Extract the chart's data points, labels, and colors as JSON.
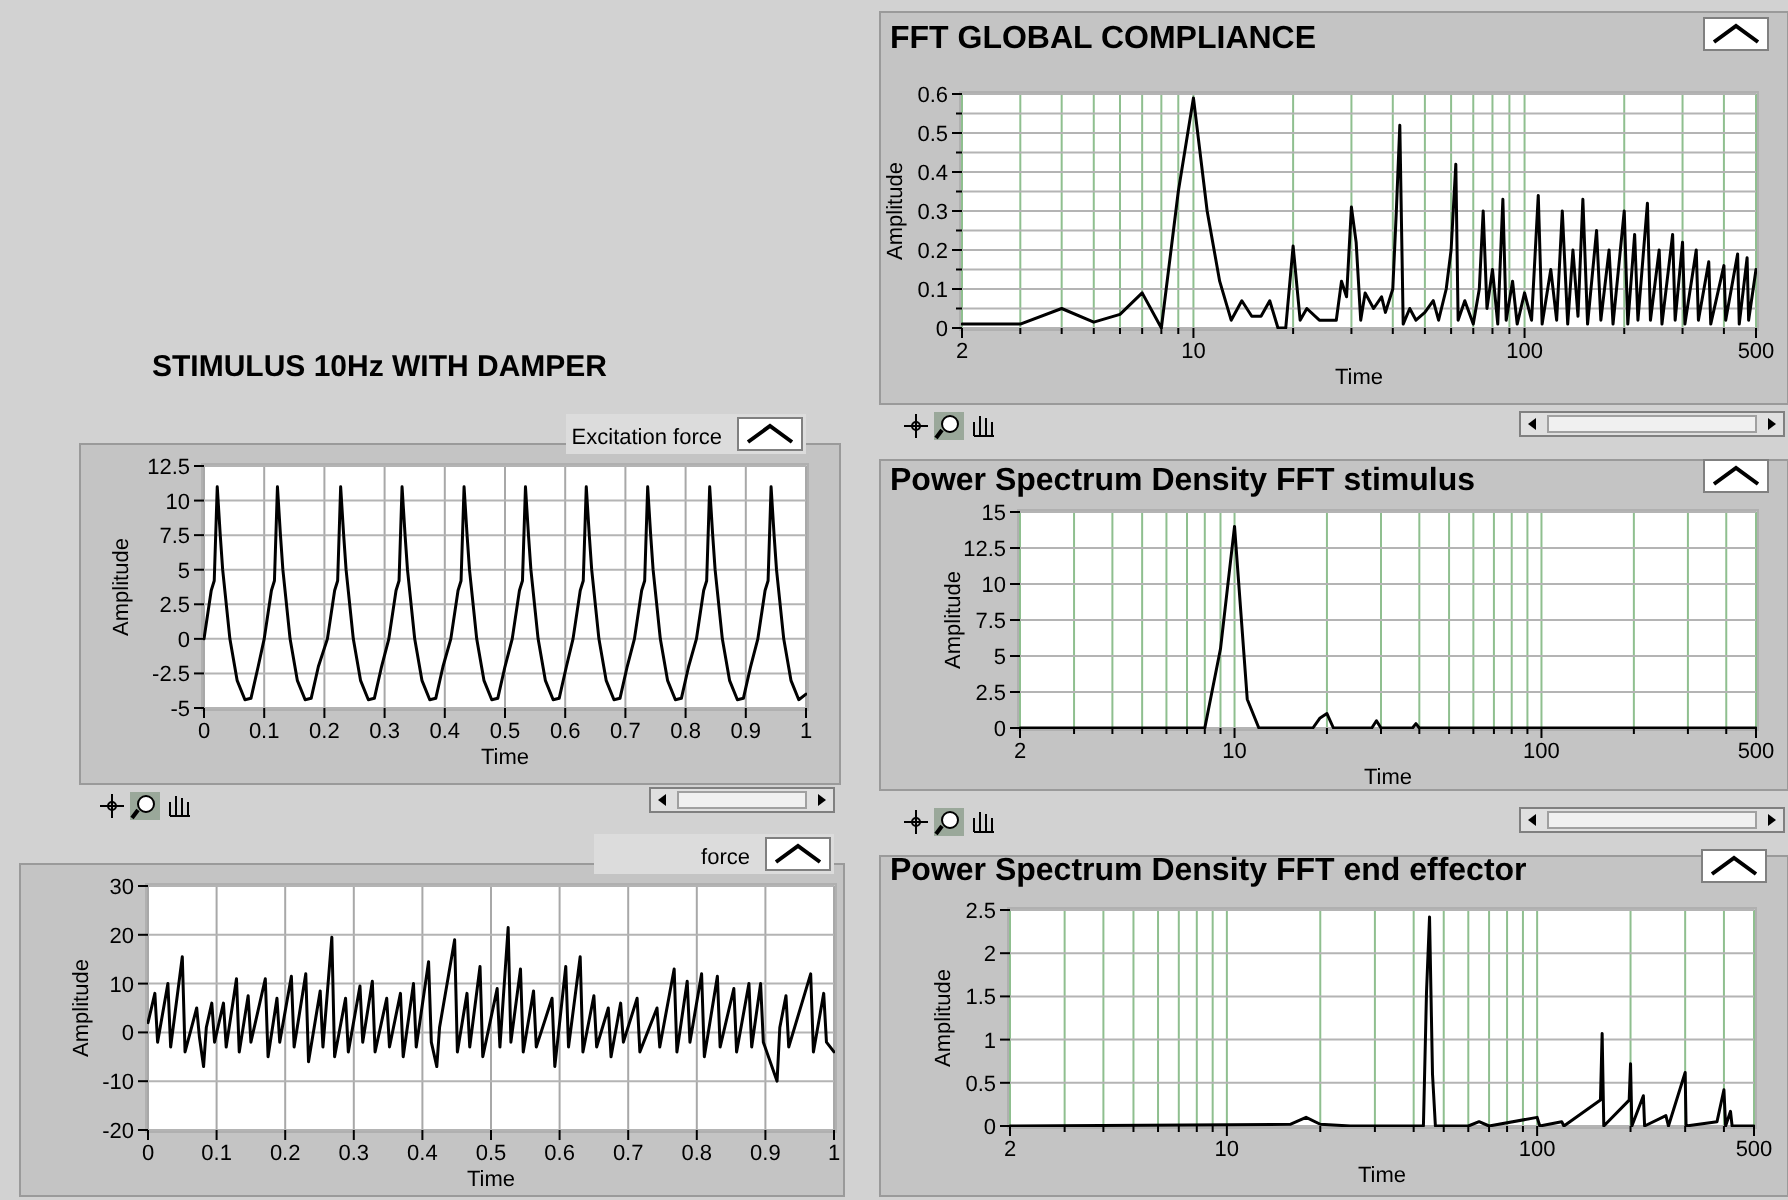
{
  "chart_data": [
    {
      "type": "line",
      "title": "FFT GLOBAL COMPLIANCE",
      "xlabel": "Time",
      "ylabel": "Amplitude",
      "log": "x",
      "grid": true,
      "xlim": [
        2,
        500
      ],
      "ylim": [
        0,
        0.6
      ],
      "xticks": [
        2,
        {
          "value": 3,
          "label": null
        },
        {
          "value": 4,
          "label": null
        },
        {
          "value": 5,
          "label": null
        },
        {
          "value": 6,
          "label": null
        },
        {
          "value": 7,
          "label": null
        },
        {
          "value": 8,
          "label": null
        },
        {
          "value": 9,
          "label": null
        },
        10,
        {
          "value": 20,
          "label": null
        },
        {
          "value": 30,
          "label": null
        },
        {
          "value": 40,
          "label": null
        },
        {
          "value": 50,
          "label": null
        },
        {
          "value": 60,
          "label": null
        },
        {
          "value": 70,
          "label": null
        },
        {
          "value": 80,
          "label": null
        },
        {
          "value": 90,
          "label": null
        },
        100,
        {
          "value": 200,
          "label": null
        },
        {
          "value": 300,
          "label": null
        },
        {
          "value": 400,
          "label": null
        },
        500
      ],
      "yticks": [
        0,
        {
          "value": 0.05,
          "label": null
        },
        0.1,
        {
          "value": 0.15,
          "label": null
        },
        0.2,
        {
          "value": 0.25,
          "label": null
        },
        0.3,
        {
          "value": 0.35,
          "label": null
        },
        0.4,
        {
          "value": 0.45,
          "label": null
        },
        0.5,
        {
          "value": 0.55,
          "label": null
        },
        0.6
      ],
      "series": [
        {
          "color": "#000000",
          "x": [
            2,
            3,
            4,
            5,
            6,
            7,
            8,
            9,
            10,
            11,
            12,
            13,
            14,
            15,
            16,
            17,
            18,
            19,
            20,
            21,
            22,
            24,
            27,
            28,
            29,
            30,
            31,
            32,
            33,
            35,
            37,
            38,
            40,
            41,
            42,
            43,
            45,
            47,
            50,
            53,
            55,
            58,
            60,
            62,
            63,
            66,
            70,
            73,
            75,
            77,
            80,
            83,
            86,
            88,
            92,
            95,
            100,
            105,
            110,
            113,
            120,
            125,
            130,
            135,
            140,
            145,
            150,
            155,
            165,
            170,
            180,
            185,
            200,
            205,
            215,
            220,
            235,
            240,
            255,
            260,
            280,
            285,
            300,
            305,
            330,
            335,
            360,
            365,
            400,
            405,
            440,
            445,
            470,
            475,
            500
          ],
          "values": [
            0.01,
            0.01,
            0.05,
            0.015,
            0.035,
            0.09,
            0,
            0.35,
            0.59,
            0.3,
            0.12,
            0.02,
            0.07,
            0.03,
            0.03,
            0.07,
            0,
            0,
            0.21,
            0.02,
            0.05,
            0.02,
            0.02,
            0.12,
            0.08,
            0.31,
            0.22,
            0.02,
            0.09,
            0.05,
            0.08,
            0.04,
            0.1,
            0.3,
            0.52,
            0.01,
            0.05,
            0.02,
            0.04,
            0.07,
            0.02,
            0.1,
            0.2,
            0.42,
            0.02,
            0.07,
            0.01,
            0.1,
            0.3,
            0.05,
            0.15,
            0.01,
            0.33,
            0.02,
            0.12,
            0.01,
            0.09,
            0.02,
            0.34,
            0.01,
            0.15,
            0.02,
            0.3,
            0.01,
            0.2,
            0.03,
            0.33,
            0.01,
            0.25,
            0.02,
            0.2,
            0.01,
            0.3,
            0.01,
            0.24,
            0.02,
            0.32,
            0.02,
            0.2,
            0.01,
            0.24,
            0.02,
            0.22,
            0.01,
            0.2,
            0.02,
            0.17,
            0.01,
            0.16,
            0.02,
            0.19,
            0.01,
            0.18,
            0.02,
            0.15
          ]
        }
      ]
    },
    {
      "type": "line",
      "title": "STIMULUS 10Hz WITH DAMPER",
      "xlabel": "Time",
      "ylabel": "Amplitude",
      "grid": true,
      "legend": "top right",
      "xlim": [
        0,
        1
      ],
      "ylim": [
        -5,
        12.5
      ],
      "xticks": [
        0,
        0.1,
        0.2,
        0.3,
        0.4,
        0.5,
        0.6,
        0.7,
        0.8,
        0.9,
        1
      ],
      "yticks": [
        -5,
        -2.5,
        0,
        2.5,
        5,
        7.5,
        10,
        12.5
      ],
      "series": [
        {
          "name": "Excitation force",
          "color": "#000000",
          "x": [
            0,
            0.012,
            0.017,
            0.022,
            0.027,
            0.031,
            0.043,
            0.055,
            0.068,
            0.078,
            0.09,
            0.1,
            0.112,
            0.117,
            0.122,
            0.127,
            0.131,
            0.143,
            0.155,
            0.168,
            0.178,
            0.19,
            0.205,
            0.217,
            0.222,
            0.227,
            0.232,
            0.236,
            0.248,
            0.26,
            0.273,
            0.283,
            0.295,
            0.307,
            0.319,
            0.324,
            0.329,
            0.334,
            0.338,
            0.35,
            0.362,
            0.375,
            0.385,
            0.397,
            0.41,
            0.422,
            0.427,
            0.432,
            0.437,
            0.441,
            0.453,
            0.465,
            0.478,
            0.488,
            0.5,
            0.512,
            0.524,
            0.529,
            0.534,
            0.539,
            0.543,
            0.555,
            0.567,
            0.58,
            0.59,
            0.602,
            0.613,
            0.625,
            0.63,
            0.635,
            0.64,
            0.644,
            0.656,
            0.668,
            0.681,
            0.691,
            0.703,
            0.715,
            0.727,
            0.732,
            0.737,
            0.742,
            0.746,
            0.758,
            0.77,
            0.783,
            0.793,
            0.805,
            0.818,
            0.83,
            0.835,
            0.84,
            0.845,
            0.849,
            0.861,
            0.873,
            0.886,
            0.896,
            0.908,
            0.92,
            0.932,
            0.937,
            0.942,
            0.947,
            0.951,
            0.963,
            0.975,
            0.988,
            1
          ],
          "values": [
            0,
            3.5,
            4.2,
            11,
            7.5,
            5,
            0,
            -3,
            -4.4,
            -4.3,
            -2,
            0,
            3.5,
            4.2,
            11,
            7.5,
            5,
            0,
            -3,
            -4.4,
            -4.3,
            -2,
            0,
            3.5,
            4.2,
            11,
            7.5,
            5,
            0,
            -3,
            -4.4,
            -4.3,
            -2,
            0,
            3.5,
            4.2,
            11,
            7.5,
            5,
            0,
            -3,
            -4.4,
            -4.3,
            -2,
            0,
            3.5,
            4.2,
            11,
            7.5,
            5,
            0,
            -3,
            -4.4,
            -4.3,
            -2,
            0,
            3.5,
            4.2,
            11,
            7.5,
            5,
            0,
            -3,
            -4.4,
            -4.3,
            -2,
            0,
            3.5,
            4.2,
            11,
            7.5,
            5,
            0,
            -3,
            -4.4,
            -4.3,
            -2,
            0,
            3.5,
            4.2,
            11,
            7.5,
            5,
            0,
            -3,
            -4.4,
            -4.3,
            -2,
            0,
            3.5,
            4.2,
            11,
            7.5,
            5,
            0,
            -3,
            -4.4,
            -4.3,
            -2,
            0,
            3.5,
            4.2,
            11,
            7.5,
            5,
            0,
            -3,
            -4.4,
            -4
          ]
        }
      ]
    },
    {
      "type": "line",
      "title": "Power Spectrum Density FFT stimulus",
      "xlabel": "Time",
      "ylabel": "Amplitude",
      "log": "x",
      "grid": true,
      "xlim": [
        2,
        500
      ],
      "ylim": [
        0,
        15
      ],
      "xticks": [
        2,
        {
          "value": 3,
          "label": null
        },
        {
          "value": 4,
          "label": null
        },
        {
          "value": 5,
          "label": null
        },
        {
          "value": 6,
          "label": null
        },
        {
          "value": 7,
          "label": null
        },
        {
          "value": 8,
          "label": null
        },
        {
          "value": 9,
          "label": null
        },
        10,
        {
          "value": 20,
          "label": null
        },
        {
          "value": 30,
          "label": null
        },
        {
          "value": 40,
          "label": null
        },
        {
          "value": 50,
          "label": null
        },
        {
          "value": 60,
          "label": null
        },
        {
          "value": 70,
          "label": null
        },
        {
          "value": 80,
          "label": null
        },
        {
          "value": 90,
          "label": null
        },
        100,
        {
          "value": 200,
          "label": null
        },
        {
          "value": 300,
          "label": null
        },
        {
          "value": 400,
          "label": null
        },
        500
      ],
      "yticks": [
        0,
        2.5,
        5,
        7.5,
        10,
        12.5,
        15
      ],
      "series": [
        {
          "color": "#000000",
          "x": [
            2,
            8,
            9,
            10,
            11,
            12,
            18,
            19,
            20,
            21,
            28,
            29,
            30,
            38,
            39,
            40,
            500
          ],
          "values": [
            0,
            0,
            5.5,
            14,
            2,
            0,
            0,
            0.7,
            1,
            0,
            0,
            0.5,
            0,
            0,
            0.3,
            0,
            0
          ]
        }
      ]
    },
    {
      "type": "line",
      "xlabel": "Time",
      "ylabel": "Amplitude",
      "grid": true,
      "legend": "top right",
      "xlim": [
        0,
        1
      ],
      "ylim": [
        -20,
        30
      ],
      "xticks": [
        0,
        0.1,
        0.2,
        0.3,
        0.4,
        0.5,
        0.6,
        0.7,
        0.8,
        0.9,
        1
      ],
      "yticks": [
        -20,
        -10,
        0,
        10,
        20,
        30
      ],
      "series": [
        {
          "name": "force",
          "color": "#000000",
          "x": [
            0,
            0.01,
            0.014,
            0.029,
            0.033,
            0.05,
            0.054,
            0.071,
            0.075,
            0.081,
            0.085,
            0.093,
            0.097,
            0.11,
            0.114,
            0.129,
            0.133,
            0.146,
            0.15,
            0.171,
            0.175,
            0.188,
            0.192,
            0.209,
            0.213,
            0.23,
            0.234,
            0.251,
            0.255,
            0.268,
            0.272,
            0.288,
            0.292,
            0.309,
            0.313,
            0.327,
            0.331,
            0.348,
            0.352,
            0.368,
            0.372,
            0.387,
            0.391,
            0.409,
            0.413,
            0.421,
            0.425,
            0.447,
            0.451,
            0.465,
            0.469,
            0.484,
            0.488,
            0.509,
            0.513,
            0.525,
            0.529,
            0.543,
            0.547,
            0.562,
            0.566,
            0.589,
            0.593,
            0.609,
            0.613,
            0.63,
            0.634,
            0.65,
            0.654,
            0.671,
            0.675,
            0.689,
            0.693,
            0.713,
            0.717,
            0.742,
            0.746,
            0.767,
            0.771,
            0.786,
            0.79,
            0.807,
            0.811,
            0.83,
            0.834,
            0.854,
            0.858,
            0.876,
            0.88,
            0.893,
            0.897,
            0.917,
            0.921,
            0.93,
            0.934,
            0.966,
            0.97,
            0.985,
            0.989,
            1
          ],
          "values": [
            2,
            8,
            -2,
            10,
            -3,
            15.5,
            -4,
            5,
            -1,
            -7,
            1,
            6,
            -2,
            6,
            -3,
            11,
            -4,
            7.5,
            -2,
            11,
            -5,
            7,
            -2,
            11.5,
            -3,
            12,
            -6,
            8.5,
            -3,
            19.5,
            -5,
            7,
            -4,
            9.5,
            -2,
            10.5,
            -4,
            7,
            -3,
            8,
            -5,
            10,
            -3,
            14.5,
            -2,
            -7,
            1,
            19,
            -4,
            8,
            -3,
            13.5,
            -5,
            9,
            -3,
            21.5,
            -2,
            13,
            -4,
            8.5,
            -3,
            7,
            -7,
            13.5,
            -3,
            15.5,
            -4,
            7.5,
            -3,
            5,
            -5,
            6,
            -2,
            7,
            -4,
            5,
            -3,
            13,
            -4,
            10.5,
            -2,
            12,
            -5,
            11.5,
            -3,
            9,
            -4,
            10,
            -3,
            10,
            -2,
            -10,
            1,
            7.5,
            -3,
            12,
            -4,
            8,
            -2,
            -4
          ]
        }
      ]
    },
    {
      "type": "line",
      "title": "Power Spectrum Density FFT end effector",
      "xlabel": "Time",
      "ylabel": "Amplitude",
      "log": "x",
      "grid": true,
      "xlim": [
        2,
        500
      ],
      "ylim": [
        0,
        2.5
      ],
      "xticks": [
        2,
        {
          "value": 3,
          "label": null
        },
        {
          "value": 4,
          "label": null
        },
        {
          "value": 5,
          "label": null
        },
        {
          "value": 6,
          "label": null
        },
        {
          "value": 7,
          "label": null
        },
        {
          "value": 8,
          "label": null
        },
        {
          "value": 9,
          "label": null
        },
        10,
        {
          "value": 20,
          "label": null
        },
        {
          "value": 30,
          "label": null
        },
        {
          "value": 40,
          "label": null
        },
        {
          "value": 50,
          "label": null
        },
        {
          "value": 60,
          "label": null
        },
        {
          "value": 70,
          "label": null
        },
        {
          "value": 80,
          "label": null
        },
        {
          "value": 90,
          "label": null
        },
        100,
        {
          "value": 200,
          "label": null
        },
        {
          "value": 300,
          "label": null
        },
        {
          "value": 400,
          "label": null
        },
        500
      ],
      "yticks": [
        0,
        0.5,
        1,
        1.5,
        2,
        2.5
      ],
      "series": [
        {
          "color": "#000000",
          "x": [
            2,
            16,
            18,
            20,
            25,
            43,
            44,
            45,
            46,
            47,
            60,
            65,
            70,
            100,
            102,
            120,
            122,
            160,
            162,
            164,
            198,
            200,
            202,
            220,
            222,
            260,
            265,
            300,
            302,
            380,
            400,
            405,
            420,
            425,
            500
          ],
          "values": [
            0,
            0.02,
            0.1,
            0.02,
            0,
            0,
            1.55,
            2.42,
            0.6,
            0,
            0,
            0.05,
            0,
            0.1,
            0,
            0.05,
            0,
            0.3,
            1.07,
            0,
            0.3,
            0.72,
            0,
            0.35,
            0,
            0.12,
            0,
            0.62,
            0,
            0.05,
            0.42,
            0,
            0.17,
            0,
            0
          ]
        }
      ]
    }
  ]
}
